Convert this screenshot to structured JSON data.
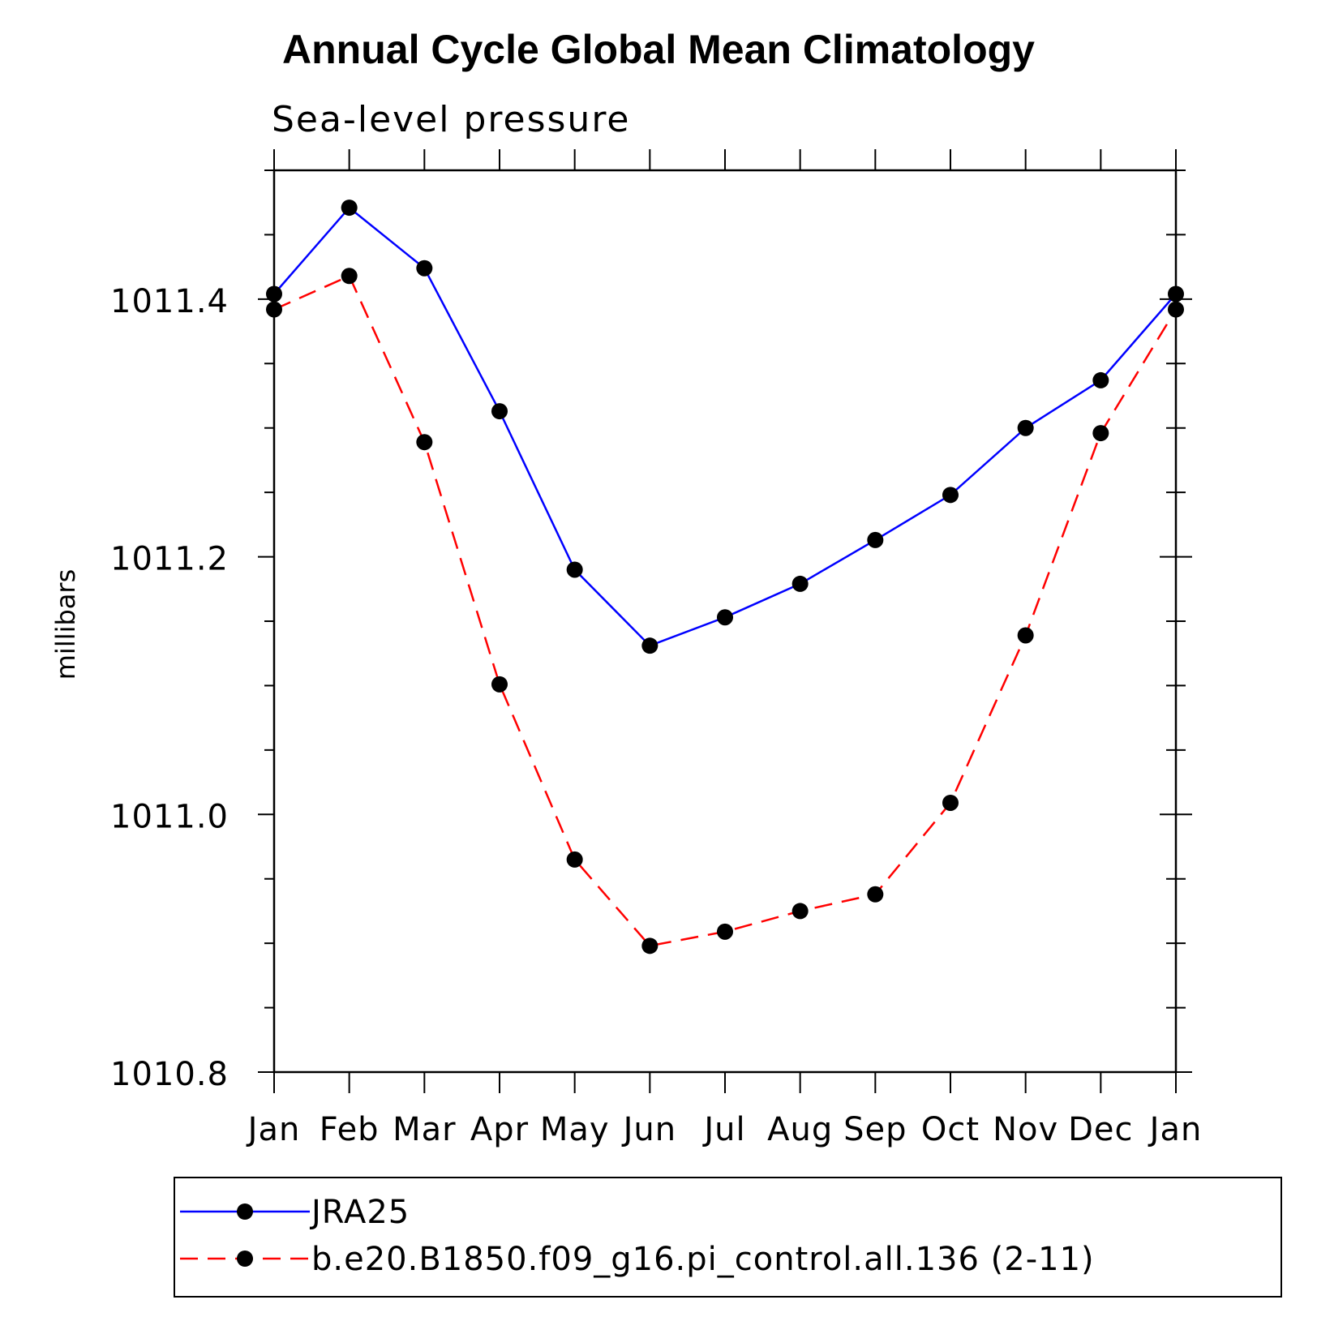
{
  "chart_data": {
    "type": "line",
    "title": "Annual Cycle Global Mean Climatology",
    "subtitle": "Sea-level pressure",
    "xlabel": "",
    "ylabel": "millibars",
    "categories": [
      "Jan",
      "Feb",
      "Mar",
      "Apr",
      "May",
      "Jun",
      "Jul",
      "Aug",
      "Sep",
      "Oct",
      "Nov",
      "Dec",
      "Jan"
    ],
    "ylim": [
      1010.8,
      1011.5
    ],
    "yticks": [
      1010.8,
      1011.0,
      1011.2,
      1011.4
    ],
    "ytick_labels": [
      "1010.8",
      "1011.0",
      "1011.2",
      "1011.4"
    ],
    "yminor_step": 0.05,
    "series": [
      {
        "name": "JRA25",
        "color": "#0000ff",
        "dash": "solid",
        "values": [
          1011.404,
          1011.471,
          1011.424,
          1011.313,
          1011.19,
          1011.131,
          1011.153,
          1011.179,
          1011.213,
          1011.248,
          1011.3,
          1011.337,
          1011.404
        ]
      },
      {
        "name": "b.e20.B1850.f09_g16.pi_control.all.136 (2-11)",
        "color": "#ff0000",
        "dash": "dashed",
        "values": [
          1011.392,
          1011.418,
          1011.289,
          1011.101,
          1010.965,
          1010.898,
          1010.909,
          1010.925,
          1010.938,
          1011.009,
          1011.139,
          1011.296,
          1011.392
        ]
      }
    ],
    "legend_position": "bottom"
  }
}
